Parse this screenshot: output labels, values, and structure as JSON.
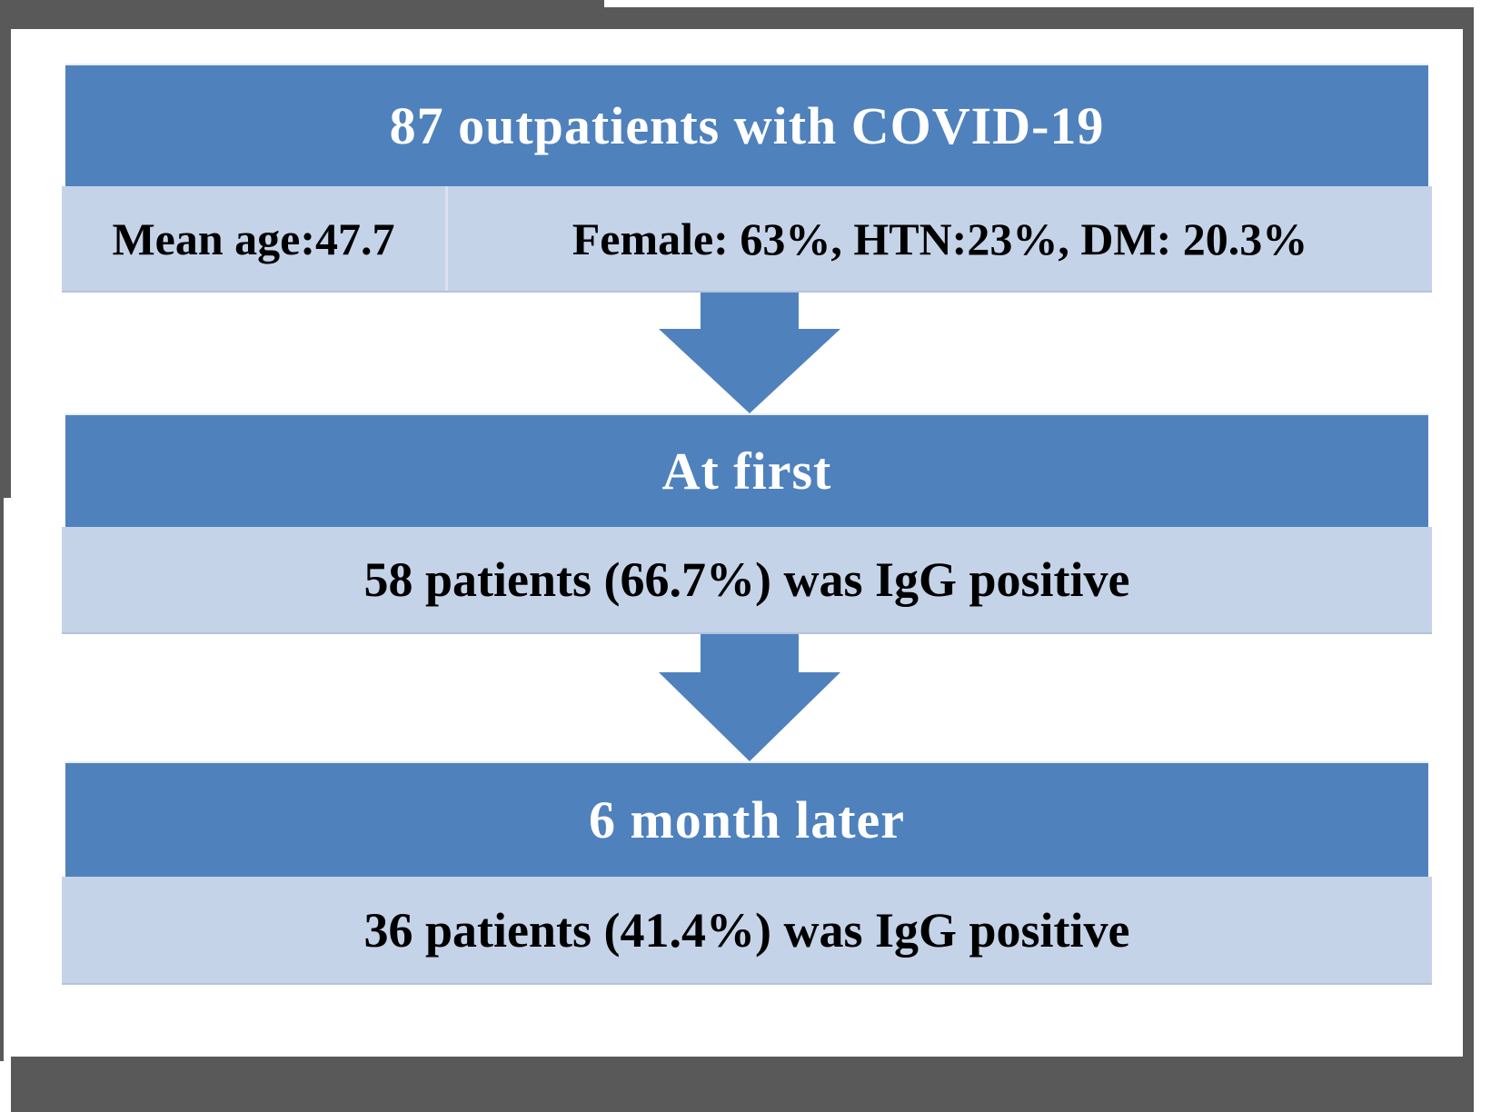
{
  "colors": {
    "header_fill": "#4f81bd",
    "info_fill": "#c5d3e8",
    "arrow_fill": "#4f81bd",
    "frame": "#595959"
  },
  "steps": [
    {
      "title": "87 outpatients with COVID-19",
      "details_left": "Mean age:47.7",
      "details_right": "Female: 63%, HTN:23%, DM: 20.3%"
    },
    {
      "title": "At first",
      "detail": "58 patients (66.7%) was IgG positive"
    },
    {
      "title": "6 month later",
      "detail": "36 patients (41.4%) was IgG positive"
    }
  ]
}
